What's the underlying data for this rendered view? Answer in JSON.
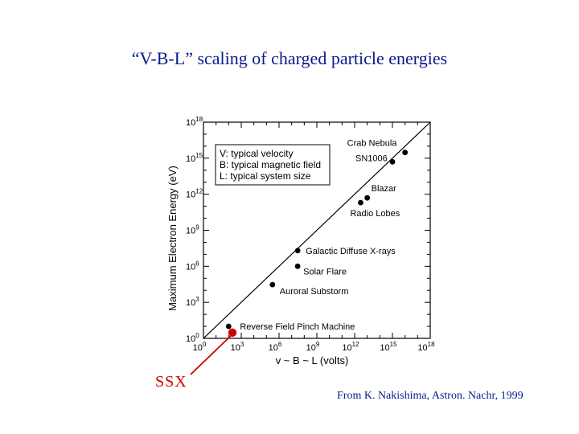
{
  "slide": {
    "title": "“V-B-L” scaling of charged particle energies",
    "ssx_label": "SSX",
    "credit": "From K. Nakishima, Astron. Nachr, 1999"
  },
  "colors": {
    "title_text": "#0a1a8c",
    "highlight": "#cc0000",
    "ink": "#000000"
  },
  "chart_data": {
    "type": "scatter",
    "xlabel": "v ~ B ~ L (volts)",
    "ylabel": "Maximum Electron Energy (eV)",
    "x_scale": "log",
    "y_scale": "log",
    "xlim": [
      1,
      1e+18
    ],
    "ylim": [
      1,
      1e+18
    ],
    "x_tick_labels": [
      {
        "base": "10",
        "exp": "0"
      },
      {
        "base": "10",
        "exp": "3"
      },
      {
        "base": "10",
        "exp": "6"
      },
      {
        "base": "10",
        "exp": "9"
      },
      {
        "base": "10",
        "exp": "12"
      },
      {
        "base": "10",
        "exp": "15"
      },
      {
        "base": "10",
        "exp": "18"
      }
    ],
    "y_tick_labels": [
      {
        "base": "10",
        "exp": "0"
      },
      {
        "base": "10",
        "exp": "3"
      },
      {
        "base": "10",
        "exp": "6"
      },
      {
        "base": "10",
        "exp": "9"
      },
      {
        "base": "10",
        "exp": "12"
      },
      {
        "base": "10",
        "exp": "15"
      },
      {
        "base": "10",
        "exp": "18"
      }
    ],
    "legend": {
      "placement": "upper-left",
      "lines": [
        "V: typical velocity",
        "B: typical magnetic field",
        "L: typical system size"
      ]
    },
    "trend_line": {
      "x": [
        1,
        1e+18
      ],
      "y": [
        1,
        1e+18
      ]
    },
    "points": [
      {
        "name": "Reverse Field Pinch Machine",
        "x": 100.0,
        "y": 10.0
      },
      {
        "name": "Auroral Substorm",
        "x": 300000.0,
        "y": 30000.0
      },
      {
        "name": "Solar Flare",
        "x": 30000000.0,
        "y": 1000000.0
      },
      {
        "name": "Galactic Diffuse X-rays",
        "x": 30000000.0,
        "y": 20000000.0
      },
      {
        "name": "Radio Lobes",
        "x": 3000000000000.0,
        "y": 200000000000.0
      },
      {
        "name": "Blazar",
        "x": 10000000000000.0,
        "y": 500000000000.0
      },
      {
        "name": "SN1006",
        "x": 1000000000000000.0,
        "y": 500000000000000.0
      },
      {
        "name": "Crab Nebula",
        "x": 1e+16,
        "y": 3000000000000000.0
      }
    ],
    "highlight_point": {
      "name": "SSX",
      "x": 200.0,
      "y": 3.0
    }
  }
}
